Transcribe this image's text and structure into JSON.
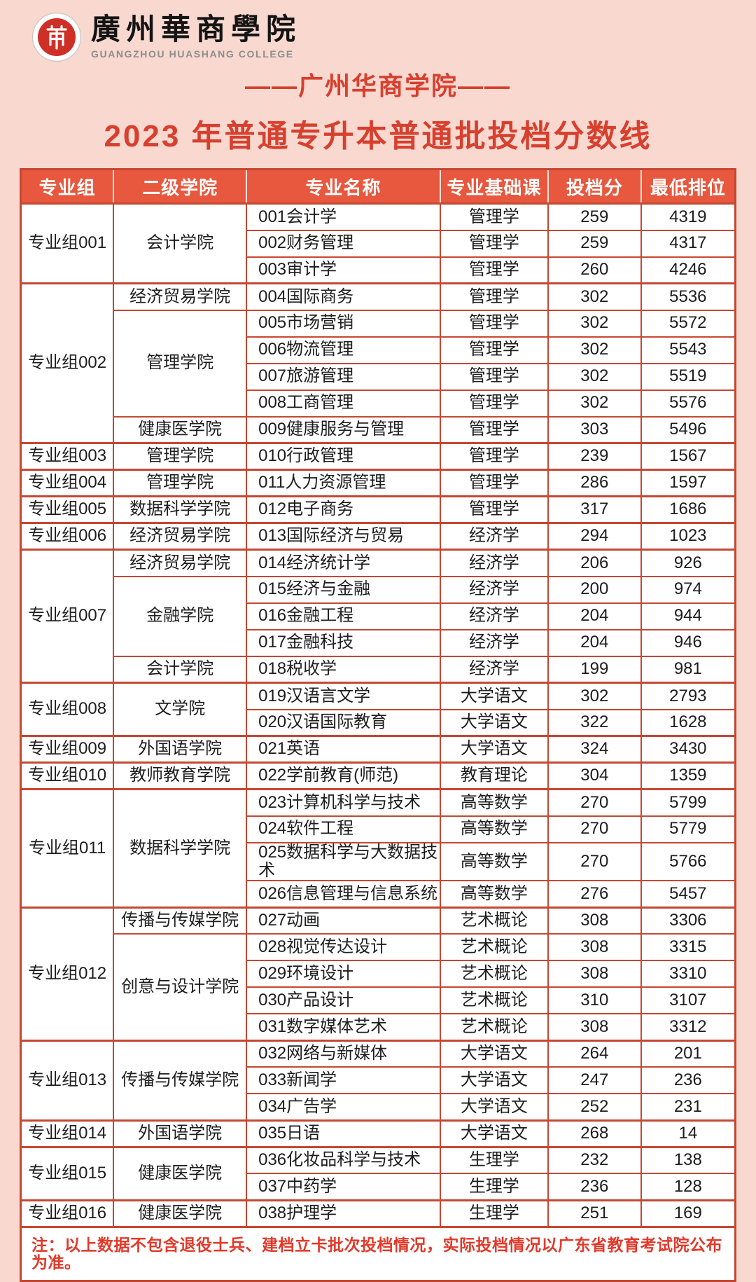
{
  "logo": {
    "zh_name": "廣州華商學院",
    "en_name": "GUANGZHOU HUASHANG COLLEGE"
  },
  "titles": {
    "line1": "——广州华商学院——",
    "line2": "2023 年普通专升本普通批投档分数线"
  },
  "colors": {
    "page_background": "#f9d8d0",
    "header_background": "#e7583e",
    "grid_border": "#c64732",
    "title_red": "#d7402e",
    "note_red": "#e1392a",
    "seal_red": "#ce2f26"
  },
  "table": {
    "headers": [
      "专业组",
      "二级学院",
      "专业名称",
      "专业基础课",
      "投档分",
      "最低排位"
    ],
    "note": "注：以上数据不包含退役士兵、建档立卡批次投档情况，实际投档情况以广东省教育考试院公布为准。",
    "groups": [
      {
        "label": "专业组001",
        "colleges": [
          {
            "label": "会计学院",
            "majors": [
              {
                "name": "001会计学",
                "course": "管理学",
                "score": "259",
                "rank": "4319"
              },
              {
                "name": "002财务管理",
                "course": "管理学",
                "score": "259",
                "rank": "4317"
              },
              {
                "name": "003审计学",
                "course": "管理学",
                "score": "260",
                "rank": "4246"
              }
            ]
          }
        ]
      },
      {
        "label": "专业组002",
        "colleges": [
          {
            "label": "经济贸易学院",
            "majors": [
              {
                "name": "004国际商务",
                "course": "管理学",
                "score": "302",
                "rank": "5536"
              }
            ]
          },
          {
            "label": "管理学院",
            "majors": [
              {
                "name": "005市场营销",
                "course": "管理学",
                "score": "302",
                "rank": "5572"
              },
              {
                "name": "006物流管理",
                "course": "管理学",
                "score": "302",
                "rank": "5543"
              },
              {
                "name": "007旅游管理",
                "course": "管理学",
                "score": "302",
                "rank": "5519"
              },
              {
                "name": "008工商管理",
                "course": "管理学",
                "score": "302",
                "rank": "5576"
              }
            ]
          },
          {
            "label": "健康医学院",
            "majors": [
              {
                "name": "009健康服务与管理",
                "course": "管理学",
                "score": "303",
                "rank": "5496"
              }
            ]
          }
        ]
      },
      {
        "label": "专业组003",
        "colleges": [
          {
            "label": "管理学院",
            "majors": [
              {
                "name": "010行政管理",
                "course": "管理学",
                "score": "239",
                "rank": "1567"
              }
            ]
          }
        ]
      },
      {
        "label": "专业组004",
        "colleges": [
          {
            "label": "管理学院",
            "majors": [
              {
                "name": "011人力资源管理",
                "course": "管理学",
                "score": "286",
                "rank": "1597"
              }
            ]
          }
        ]
      },
      {
        "label": "专业组005",
        "colleges": [
          {
            "label": "数据科学学院",
            "majors": [
              {
                "name": "012电子商务",
                "course": "管理学",
                "score": "317",
                "rank": "1686"
              }
            ]
          }
        ]
      },
      {
        "label": "专业组006",
        "colleges": [
          {
            "label": "经济贸易学院",
            "majors": [
              {
                "name": "013国际经济与贸易",
                "course": "经济学",
                "score": "294",
                "rank": "1023"
              }
            ]
          }
        ]
      },
      {
        "label": "专业组007",
        "colleges": [
          {
            "label": "经济贸易学院",
            "majors": [
              {
                "name": "014经济统计学",
                "course": "经济学",
                "score": "206",
                "rank": "926"
              }
            ]
          },
          {
            "label": "金融学院",
            "majors": [
              {
                "name": "015经济与金融",
                "course": "经济学",
                "score": "200",
                "rank": "974"
              },
              {
                "name": "016金融工程",
                "course": "经济学",
                "score": "204",
                "rank": "944"
              },
              {
                "name": "017金融科技",
                "course": "经济学",
                "score": "204",
                "rank": "946"
              }
            ]
          },
          {
            "label": "会计学院",
            "majors": [
              {
                "name": "018税收学",
                "course": "经济学",
                "score": "199",
                "rank": "981"
              }
            ]
          }
        ]
      },
      {
        "label": "专业组008",
        "colleges": [
          {
            "label": "文学院",
            "majors": [
              {
                "name": "019汉语言文学",
                "course": "大学语文",
                "score": "302",
                "rank": "2793"
              },
              {
                "name": "020汉语国际教育",
                "course": "大学语文",
                "score": "322",
                "rank": "1628"
              }
            ]
          }
        ]
      },
      {
        "label": "专业组009",
        "colleges": [
          {
            "label": "外国语学院",
            "majors": [
              {
                "name": "021英语",
                "course": "大学语文",
                "score": "324",
                "rank": "3430"
              }
            ]
          }
        ]
      },
      {
        "label": "专业组010",
        "colleges": [
          {
            "label": "教师教育学院",
            "majors": [
              {
                "name": "022学前教育(师范)",
                "course": "教育理论",
                "score": "304",
                "rank": "1359"
              }
            ]
          }
        ]
      },
      {
        "label": "专业组011",
        "colleges": [
          {
            "label": "数据科学学院",
            "majors": [
              {
                "name": "023计算机科学与技术",
                "course": "高等数学",
                "score": "270",
                "rank": "5799"
              },
              {
                "name": "024软件工程",
                "course": "高等数学",
                "score": "270",
                "rank": "5779"
              },
              {
                "name": "025数据科学与大数据技术",
                "course": "高等数学",
                "score": "270",
                "rank": "5766"
              },
              {
                "name": "026信息管理与信息系统",
                "course": "高等数学",
                "score": "276",
                "rank": "5457"
              }
            ]
          }
        ]
      },
      {
        "label": "专业组012",
        "colleges": [
          {
            "label": "传播与传媒学院",
            "majors": [
              {
                "name": "027动画",
                "course": "艺术概论",
                "score": "308",
                "rank": "3306"
              }
            ]
          },
          {
            "label": "创意与设计学院",
            "majors": [
              {
                "name": "028视觉传达设计",
                "course": "艺术概论",
                "score": "308",
                "rank": "3315"
              },
              {
                "name": "029环境设计",
                "course": "艺术概论",
                "score": "308",
                "rank": "3310"
              },
              {
                "name": "030产品设计",
                "course": "艺术概论",
                "score": "310",
                "rank": "3107"
              },
              {
                "name": "031数字媒体艺术",
                "course": "艺术概论",
                "score": "308",
                "rank": "3312"
              }
            ]
          }
        ]
      },
      {
        "label": "专业组013",
        "colleges": [
          {
            "label": "传播与传媒学院",
            "majors": [
              {
                "name": "032网络与新媒体",
                "course": "大学语文",
                "score": "264",
                "rank": "201"
              },
              {
                "name": "033新闻学",
                "course": "大学语文",
                "score": "247",
                "rank": "236"
              },
              {
                "name": "034广告学",
                "course": "大学语文",
                "score": "252",
                "rank": "231"
              }
            ]
          }
        ]
      },
      {
        "label": "专业组014",
        "colleges": [
          {
            "label": "外国语学院",
            "majors": [
              {
                "name": "035日语",
                "course": "大学语文",
                "score": "268",
                "rank": "14"
              }
            ]
          }
        ]
      },
      {
        "label": "专业组015",
        "colleges": [
          {
            "label": "健康医学院",
            "majors": [
              {
                "name": "036化妆品科学与技术",
                "course": "生理学",
                "score": "232",
                "rank": "138"
              },
              {
                "name": "037中药学",
                "course": "生理学",
                "score": "236",
                "rank": "128"
              }
            ]
          }
        ]
      },
      {
        "label": "专业组016",
        "colleges": [
          {
            "label": "健康医学院",
            "majors": [
              {
                "name": "038护理学",
                "course": "生理学",
                "score": "251",
                "rank": "169"
              }
            ]
          }
        ]
      }
    ]
  }
}
